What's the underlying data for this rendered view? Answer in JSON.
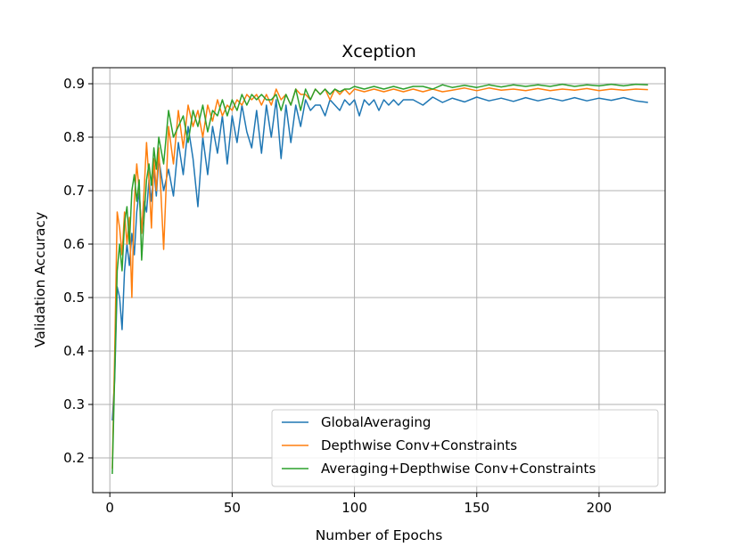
{
  "chart_data": {
    "type": "line",
    "title": "Xception",
    "xlabel": "Number of Epochs",
    "ylabel": "Validation Accuracy",
    "xlim": [
      -7,
      227
    ],
    "ylim": [
      0.135,
      0.93
    ],
    "xticks": [
      0,
      50,
      100,
      150,
      200
    ],
    "yticks": [
      0.2,
      0.3,
      0.4,
      0.5,
      0.6,
      0.7,
      0.8,
      0.9
    ],
    "xtick_labels": [
      "0",
      "50",
      "100",
      "150",
      "200"
    ],
    "ytick_labels": [
      "0.2",
      "0.3",
      "0.4",
      "0.5",
      "0.6",
      "0.7",
      "0.8",
      "0.9"
    ],
    "grid": true,
    "legend_position": "lower-right",
    "series": [
      {
        "name": "GlobalAveraging",
        "color": "#1f77b4",
        "x": [
          1,
          2,
          3,
          4,
          5,
          6,
          7,
          8,
          9,
          10,
          11,
          12,
          13,
          14,
          15,
          16,
          17,
          18,
          19,
          20,
          22,
          24,
          26,
          28,
          30,
          32,
          34,
          36,
          38,
          40,
          42,
          44,
          46,
          48,
          50,
          52,
          54,
          56,
          58,
          60,
          62,
          64,
          66,
          68,
          70,
          72,
          74,
          76,
          78,
          80,
          82,
          84,
          86,
          88,
          90,
          92,
          94,
          96,
          98,
          100,
          102,
          104,
          106,
          108,
          110,
          112,
          114,
          116,
          118,
          120,
          124,
          128,
          132,
          136,
          140,
          145,
          150,
          155,
          160,
          165,
          170,
          175,
          180,
          185,
          190,
          195,
          200,
          205,
          210,
          215,
          220
        ],
        "y": [
          0.27,
          0.35,
          0.52,
          0.5,
          0.44,
          0.55,
          0.6,
          0.56,
          0.62,
          0.58,
          0.66,
          0.7,
          0.62,
          0.68,
          0.66,
          0.72,
          0.68,
          0.74,
          0.69,
          0.76,
          0.7,
          0.74,
          0.69,
          0.79,
          0.73,
          0.82,
          0.76,
          0.67,
          0.8,
          0.73,
          0.82,
          0.77,
          0.84,
          0.75,
          0.84,
          0.79,
          0.86,
          0.81,
          0.78,
          0.85,
          0.77,
          0.86,
          0.8,
          0.87,
          0.76,
          0.86,
          0.79,
          0.86,
          0.82,
          0.87,
          0.85,
          0.86,
          0.86,
          0.84,
          0.87,
          0.86,
          0.85,
          0.87,
          0.86,
          0.87,
          0.84,
          0.87,
          0.86,
          0.87,
          0.85,
          0.87,
          0.86,
          0.87,
          0.86,
          0.87,
          0.87,
          0.86,
          0.875,
          0.865,
          0.873,
          0.866,
          0.875,
          0.868,
          0.873,
          0.867,
          0.874,
          0.868,
          0.873,
          0.868,
          0.874,
          0.868,
          0.873,
          0.869,
          0.874,
          0.868,
          0.865
        ]
      },
      {
        "name": "Depthwise Conv+Constraints",
        "color": "#ff7f0e",
        "x": [
          1,
          2,
          3,
          4,
          5,
          6,
          7,
          8,
          9,
          10,
          11,
          12,
          13,
          14,
          15,
          16,
          17,
          18,
          19,
          20,
          22,
          24,
          26,
          28,
          30,
          32,
          34,
          36,
          38,
          40,
          42,
          44,
          46,
          48,
          50,
          52,
          54,
          56,
          58,
          60,
          62,
          64,
          66,
          68,
          70,
          72,
          74,
          76,
          78,
          80,
          82,
          84,
          86,
          88,
          90,
          92,
          94,
          96,
          98,
          100,
          104,
          108,
          112,
          116,
          120,
          124,
          128,
          132,
          136,
          140,
          145,
          150,
          155,
          160,
          165,
          170,
          175,
          180,
          185,
          190,
          195,
          200,
          205,
          210,
          215,
          220
        ],
        "y": [
          0.18,
          0.4,
          0.66,
          0.63,
          0.58,
          0.66,
          0.6,
          0.65,
          0.5,
          0.68,
          0.75,
          0.7,
          0.62,
          0.7,
          0.79,
          0.72,
          0.63,
          0.76,
          0.7,
          0.78,
          0.59,
          0.82,
          0.75,
          0.85,
          0.78,
          0.86,
          0.82,
          0.85,
          0.8,
          0.86,
          0.83,
          0.87,
          0.84,
          0.86,
          0.85,
          0.87,
          0.86,
          0.88,
          0.87,
          0.88,
          0.86,
          0.88,
          0.86,
          0.89,
          0.87,
          0.88,
          0.86,
          0.89,
          0.88,
          0.88,
          0.87,
          0.89,
          0.88,
          0.89,
          0.87,
          0.89,
          0.88,
          0.89,
          0.88,
          0.89,
          0.885,
          0.89,
          0.885,
          0.89,
          0.885,
          0.89,
          0.885,
          0.89,
          0.885,
          0.888,
          0.892,
          0.887,
          0.892,
          0.888,
          0.89,
          0.887,
          0.891,
          0.887,
          0.89,
          0.888,
          0.891,
          0.887,
          0.89,
          0.888,
          0.89,
          0.889
        ]
      },
      {
        "name": "Averaging+Depthwise Conv+Constraints",
        "color": "#2ca02c",
        "x": [
          1,
          2,
          3,
          4,
          5,
          6,
          7,
          8,
          9,
          10,
          11,
          12,
          13,
          14,
          15,
          16,
          17,
          18,
          19,
          20,
          22,
          24,
          26,
          28,
          30,
          32,
          34,
          36,
          38,
          40,
          42,
          44,
          46,
          48,
          50,
          52,
          54,
          56,
          58,
          60,
          62,
          64,
          66,
          68,
          70,
          72,
          74,
          76,
          78,
          80,
          82,
          84,
          86,
          88,
          90,
          92,
          94,
          96,
          98,
          100,
          104,
          108,
          112,
          116,
          120,
          124,
          128,
          132,
          136,
          140,
          145,
          150,
          155,
          160,
          165,
          170,
          175,
          180,
          185,
          190,
          195,
          200,
          205,
          210,
          215,
          220
        ],
        "y": [
          0.17,
          0.36,
          0.55,
          0.6,
          0.55,
          0.64,
          0.67,
          0.6,
          0.7,
          0.73,
          0.68,
          0.72,
          0.57,
          0.65,
          0.72,
          0.75,
          0.71,
          0.78,
          0.74,
          0.8,
          0.75,
          0.85,
          0.8,
          0.82,
          0.84,
          0.79,
          0.85,
          0.82,
          0.86,
          0.81,
          0.85,
          0.84,
          0.87,
          0.84,
          0.87,
          0.85,
          0.88,
          0.86,
          0.88,
          0.87,
          0.88,
          0.87,
          0.87,
          0.88,
          0.85,
          0.88,
          0.86,
          0.89,
          0.85,
          0.89,
          0.87,
          0.89,
          0.88,
          0.89,
          0.88,
          0.89,
          0.885,
          0.89,
          0.89,
          0.895,
          0.89,
          0.895,
          0.89,
          0.895,
          0.89,
          0.895,
          0.895,
          0.89,
          0.898,
          0.893,
          0.897,
          0.893,
          0.898,
          0.894,
          0.898,
          0.895,
          0.898,
          0.895,
          0.899,
          0.895,
          0.898,
          0.896,
          0.899,
          0.896,
          0.899,
          0.898
        ]
      }
    ]
  }
}
